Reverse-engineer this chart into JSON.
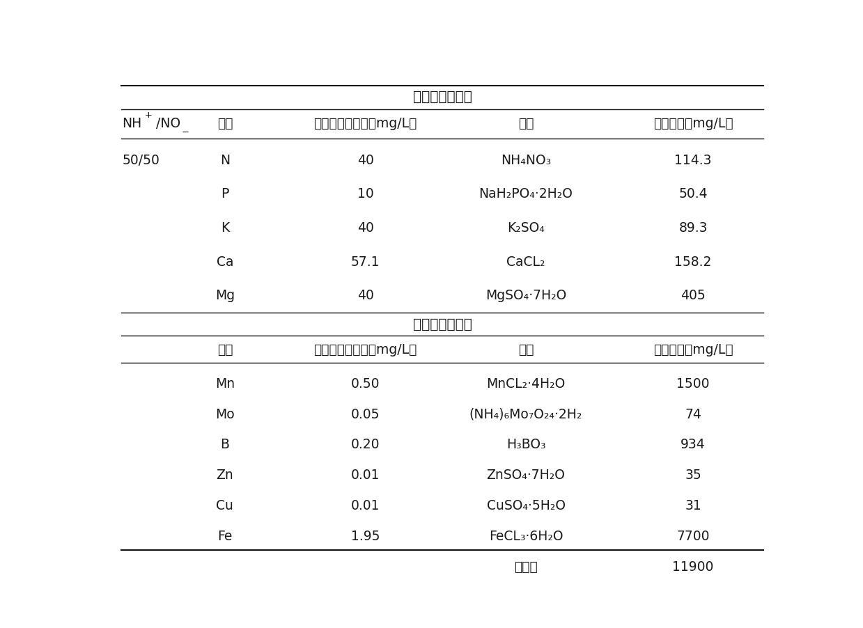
{
  "title_top": "大量元素储备液",
  "title_mid": "微量元素储备液",
  "header1_col0": "NH",
  "header1_col0_sup": "+",
  "header1_col0_mid": "/NO",
  "header1_col0_sub": "−",
  "header1": [
    "元素",
    "营养液元素浓度（mg/L）",
    "盐类",
    "盐类用量（mg/L）"
  ],
  "macro_rows": [
    [
      "50/50",
      "N",
      "40",
      "NH₄NO₃",
      "114.3"
    ],
    [
      "",
      "P",
      "10",
      "NaH₂PO₄·2H₂O",
      "50.4"
    ],
    [
      "",
      "K",
      "40",
      "K₂SO₄",
      "89.3"
    ],
    [
      "",
      "Ca",
      "57.1",
      "CaCL₂",
      "158.2"
    ],
    [
      "",
      "Mg",
      "40",
      "MgSO₄·7H₂O",
      "405"
    ]
  ],
  "header2": [
    "元素",
    "营养液元素浓度（mg/L）",
    "盐类",
    "盐类用量（mg/L）"
  ],
  "micro_rows": [
    [
      "Mn",
      "0.50",
      "MnCL₂·4H₂O",
      "1500"
    ],
    [
      "Mo",
      "0.05",
      "(NH₄)₆Mo₇O₂₄·2H₂",
      "74"
    ],
    [
      "B",
      "0.20",
      "H₃BO₃",
      "934"
    ],
    [
      "Zn",
      "0.01",
      "ZnSO₄·7H₂O",
      "35"
    ],
    [
      "Cu",
      "0.01",
      "CuSO₄·5H₂O",
      "31"
    ],
    [
      "Fe",
      "1.95",
      "FeCL₃·6H₂O",
      "7700"
    ],
    [
      "",
      "",
      "柠橬酸",
      "11900"
    ]
  ],
  "bg_color": "#ffffff",
  "text_color": "#1a1a1a",
  "line_color": "#111111",
  "fontsize": 13.5,
  "fontsize_header": 13.5,
  "fontsize_title": 14.5
}
